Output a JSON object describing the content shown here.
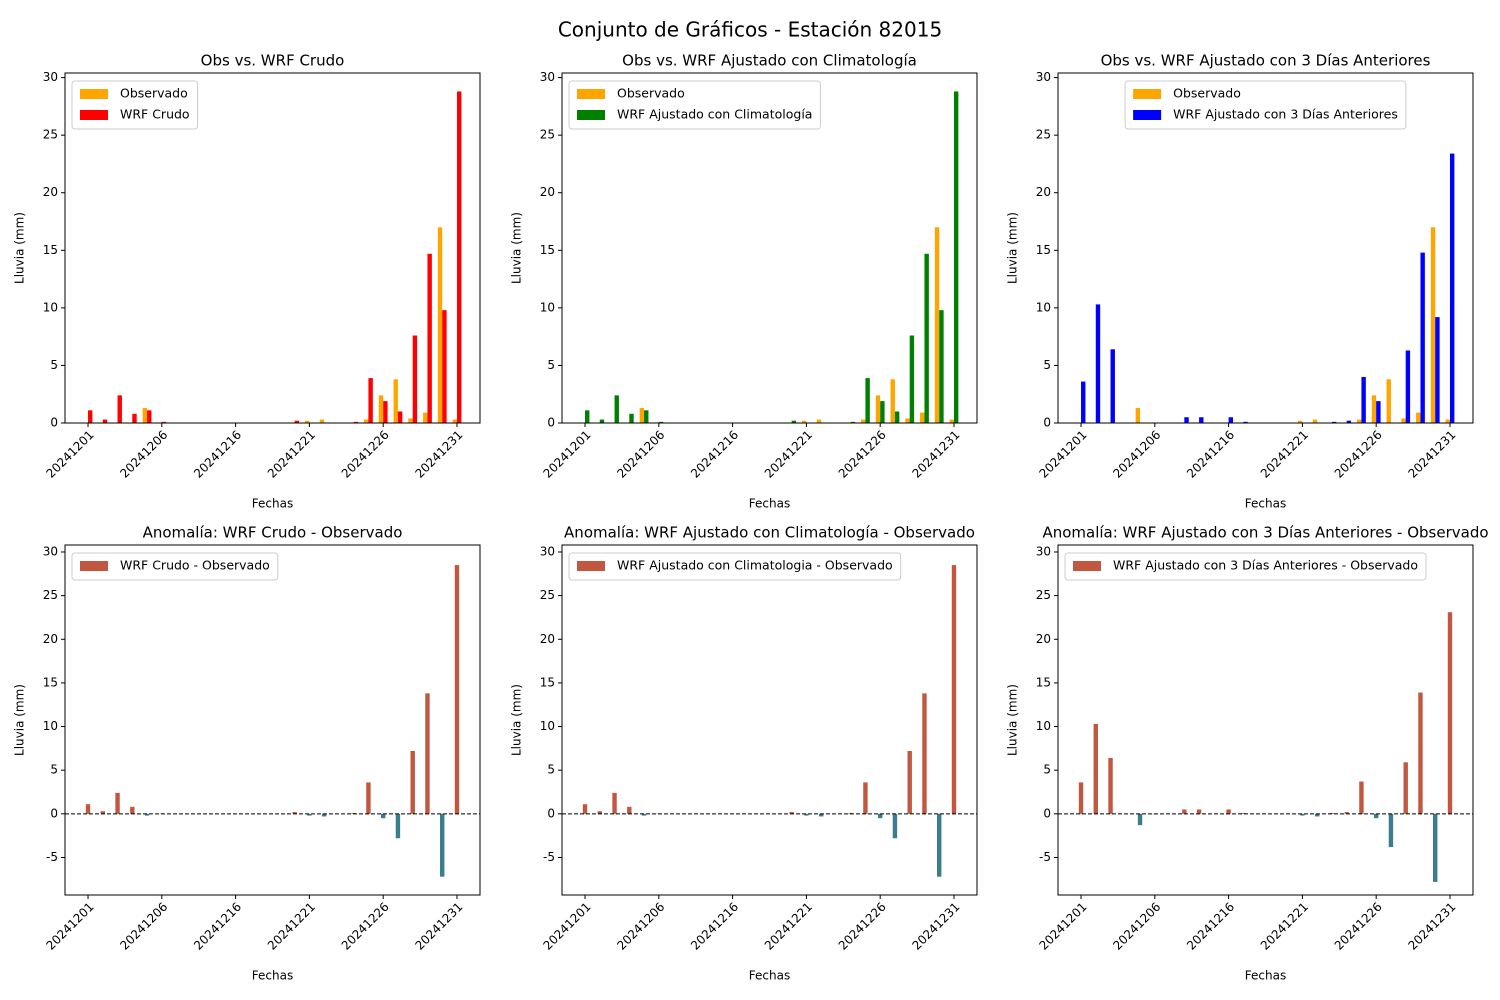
{
  "title": "Conjunto de Gráficos - Estación 82015",
  "chart_data": [
    {
      "type": "bar",
      "title": "Obs vs. WRF Crudo",
      "xlabel": "Fechas",
      "ylabel": "Lluvia (mm)",
      "legend": "upper left",
      "categories": [
        "20241201",
        null,
        null,
        null,
        null,
        "20241206",
        null,
        null,
        null,
        null,
        "20241216",
        null,
        null,
        null,
        null,
        "20241221",
        null,
        null,
        null,
        null,
        "20241226",
        null,
        null,
        null,
        null,
        "20241231"
      ],
      "ylim": [
        0,
        30.4
      ],
      "yticks": [
        0,
        5,
        10,
        15,
        20,
        25,
        30
      ],
      "series": [
        {
          "name": "Observado",
          "color": "#ffa500",
          "values": [
            0,
            0,
            0,
            0,
            1.3,
            0.05,
            0,
            0,
            0,
            0,
            0,
            0,
            0,
            0,
            0,
            0.2,
            0.3,
            0,
            0,
            0.3,
            2.4,
            3.8,
            0.4,
            0.9,
            17.0,
            0.3
          ]
        },
        {
          "name": "WRF Crudo",
          "color": "#ff0000",
          "values": [
            1.1,
            0.3,
            2.4,
            0.8,
            1.1,
            0.1,
            0,
            0,
            0,
            0,
            0,
            0,
            0,
            0,
            0.2,
            0,
            0,
            0,
            0.1,
            3.9,
            1.9,
            1.0,
            7.6,
            14.7,
            9.8,
            28.8
          ]
        }
      ]
    },
    {
      "type": "bar",
      "title": "Obs vs. WRF Ajustado con Climatología",
      "xlabel": "Fechas",
      "ylabel": "Lluvia (mm)",
      "legend": "upper left",
      "categories": [
        "20241201",
        null,
        null,
        null,
        null,
        "20241206",
        null,
        null,
        null,
        null,
        "20241216",
        null,
        null,
        null,
        null,
        "20241221",
        null,
        null,
        null,
        null,
        "20241226",
        null,
        null,
        null,
        null,
        "20241231"
      ],
      "ylim": [
        0,
        30.4
      ],
      "yticks": [
        0,
        5,
        10,
        15,
        20,
        25,
        30
      ],
      "series": [
        {
          "name": "Observado",
          "color": "#ffa500",
          "values": [
            0,
            0,
            0,
            0,
            1.3,
            0.05,
            0,
            0,
            0,
            0,
            0,
            0,
            0,
            0,
            0,
            0.2,
            0.3,
            0,
            0,
            0.3,
            2.4,
            3.8,
            0.4,
            0.9,
            17.0,
            0.3
          ]
        },
        {
          "name": "WRF Ajustado con Climatología",
          "color": "#008000",
          "values": [
            1.1,
            0.3,
            2.4,
            0.8,
            1.1,
            0.1,
            0,
            0,
            0,
            0,
            0,
            0,
            0,
            0,
            0.2,
            0,
            0,
            0,
            0.1,
            3.9,
            1.9,
            1.0,
            7.6,
            14.7,
            9.8,
            28.8
          ]
        }
      ]
    },
    {
      "type": "bar",
      "title": "Obs vs. WRF Ajustado con 3 Días Anteriores",
      "xlabel": "Fechas",
      "ylabel": "Lluvia (mm)",
      "legend": "upper center",
      "categories": [
        "20241201",
        null,
        null,
        null,
        null,
        "20241206",
        null,
        null,
        null,
        null,
        "20241216",
        null,
        null,
        null,
        null,
        "20241221",
        null,
        null,
        null,
        null,
        "20241226",
        null,
        null,
        null,
        null,
        "20241231"
      ],
      "ylim": [
        0,
        30.4
      ],
      "yticks": [
        0,
        5,
        10,
        15,
        20,
        25,
        30
      ],
      "series": [
        {
          "name": "Observado",
          "color": "#ffa500",
          "values": [
            0,
            0,
            0,
            0,
            1.3,
            0.05,
            0,
            0,
            0,
            0,
            0,
            0,
            0,
            0,
            0,
            0.2,
            0.3,
            0,
            0,
            0.3,
            2.4,
            3.8,
            0.4,
            0.9,
            17.0,
            0.3
          ]
        },
        {
          "name": "WRF Ajustado con 3 Días Anteriores",
          "color": "#0000ff",
          "values": [
            3.6,
            10.3,
            6.4,
            0,
            0,
            0,
            0,
            0.5,
            0.5,
            0,
            0.5,
            0.1,
            0,
            0,
            0,
            0,
            0,
            0.1,
            0.2,
            4.0,
            1.9,
            0,
            6.3,
            14.8,
            9.2,
            23.4
          ]
        }
      ]
    },
    {
      "type": "bar",
      "title": "Anomalía: WRF Crudo - Observado",
      "xlabel": "Fechas",
      "ylabel": "Lluvia (mm)",
      "legend": "upper left",
      "categories": [
        "20241201",
        null,
        null,
        null,
        null,
        "20241206",
        null,
        null,
        null,
        null,
        "20241216",
        null,
        null,
        null,
        null,
        "20241221",
        null,
        null,
        null,
        null,
        "20241226",
        null,
        null,
        null,
        null,
        "20241231"
      ],
      "ylim": [
        -9.3,
        30.8
      ],
      "yticks": [
        -5,
        0,
        5,
        10,
        15,
        20,
        25,
        30
      ],
      "series": [
        {
          "name": "WRF Crudo - Observado",
          "color": "#c0573e",
          "negative_color": "#3a7d8c",
          "values": [
            1.1,
            0.3,
            2.4,
            0.8,
            -0.2,
            0.05,
            0,
            0,
            0,
            0,
            0,
            0,
            0,
            0,
            0.2,
            -0.2,
            -0.3,
            0,
            0.1,
            3.6,
            -0.5,
            -2.8,
            7.2,
            13.8,
            -7.2,
            28.5
          ]
        }
      ]
    },
    {
      "type": "bar",
      "title": "Anomalía: WRF Ajustado con Climatología - Observado",
      "xlabel": "Fechas",
      "ylabel": "Lluvia (mm)",
      "legend": "upper left",
      "categories": [
        "20241201",
        null,
        null,
        null,
        null,
        "20241206",
        null,
        null,
        null,
        null,
        "20241216",
        null,
        null,
        null,
        null,
        "20241221",
        null,
        null,
        null,
        null,
        "20241226",
        null,
        null,
        null,
        null,
        "20241231"
      ],
      "ylim": [
        -9.3,
        30.8
      ],
      "yticks": [
        -5,
        0,
        5,
        10,
        15,
        20,
        25,
        30
      ],
      "series": [
        {
          "name": "WRF Ajustado con Climatologia - Observado",
          "color": "#c0573e",
          "negative_color": "#3a7d8c",
          "values": [
            1.1,
            0.3,
            2.4,
            0.8,
            -0.2,
            0.05,
            0,
            0,
            0,
            0,
            0,
            0,
            0,
            0,
            0.2,
            -0.2,
            -0.3,
            0,
            0.1,
            3.6,
            -0.5,
            -2.8,
            7.2,
            13.8,
            -7.2,
            28.5
          ]
        }
      ]
    },
    {
      "type": "bar",
      "title": "Anomalía: WRF Ajustado con 3 Días Anteriores - Observado",
      "xlabel": "Fechas",
      "ylabel": "Lluvia (mm)",
      "legend": "upper left",
      "categories": [
        "20241201",
        null,
        null,
        null,
        null,
        "20241206",
        null,
        null,
        null,
        null,
        "20241216",
        null,
        null,
        null,
        null,
        "20241221",
        null,
        null,
        null,
        null,
        "20241226",
        null,
        null,
        null,
        null,
        "20241231"
      ],
      "ylim": [
        -9.3,
        30.8
      ],
      "yticks": [
        -5,
        0,
        5,
        10,
        15,
        20,
        25,
        30
      ],
      "series": [
        {
          "name": "WRF Ajustado con 3 Días Anteriores - Observado",
          "color": "#c0573e",
          "negative_color": "#3a7d8c",
          "values": [
            3.6,
            10.3,
            6.4,
            0,
            -1.3,
            -0.05,
            0,
            0.5,
            0.5,
            0,
            0.5,
            0.1,
            0,
            0,
            0,
            -0.2,
            -0.3,
            0.1,
            0.2,
            3.7,
            -0.5,
            -3.8,
            5.9,
            13.9,
            -7.8,
            23.1
          ]
        }
      ]
    }
  ]
}
